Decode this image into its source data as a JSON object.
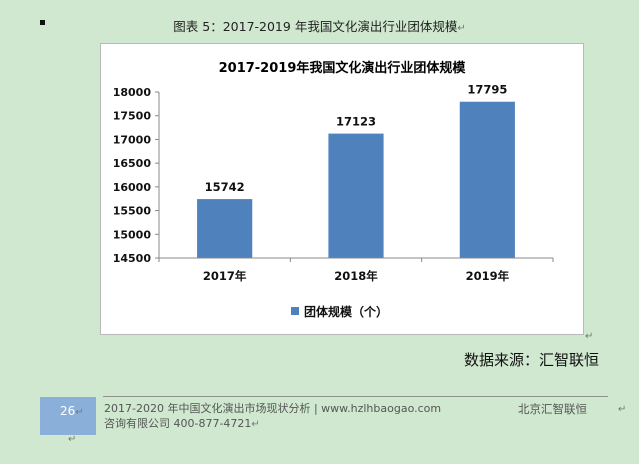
{
  "doc": {
    "figure_caption": "图表 5：2017-2019 年我国文化演出行业团体规模",
    "paragraph_mark": "↵",
    "source_label": "数据来源：汇智联恒",
    "footer": {
      "page_number": "26",
      "line1": "2017-2020 年中国文化演出市场现状分析 | www.hzlhbaogao.com",
      "line2": "咨询有限公司  400-877-4721",
      "right": "北京汇智联恒"
    }
  },
  "chart_data": {
    "type": "bar",
    "title": "2017-2019年我国文化演出行业团体规模",
    "categories": [
      "2017年",
      "2018年",
      "2019年"
    ],
    "series": [
      {
        "name": "团体规模（个）",
        "values": [
          15742,
          17123,
          17795
        ]
      }
    ],
    "ylim": [
      14500,
      18000
    ],
    "yticks": [
      14500,
      15000,
      15500,
      16000,
      16500,
      17000,
      17500,
      18000
    ],
    "xlabel": "",
    "ylabel": "",
    "legend_position": "bottom",
    "bar_color": "#4f81bd",
    "grid": false
  }
}
